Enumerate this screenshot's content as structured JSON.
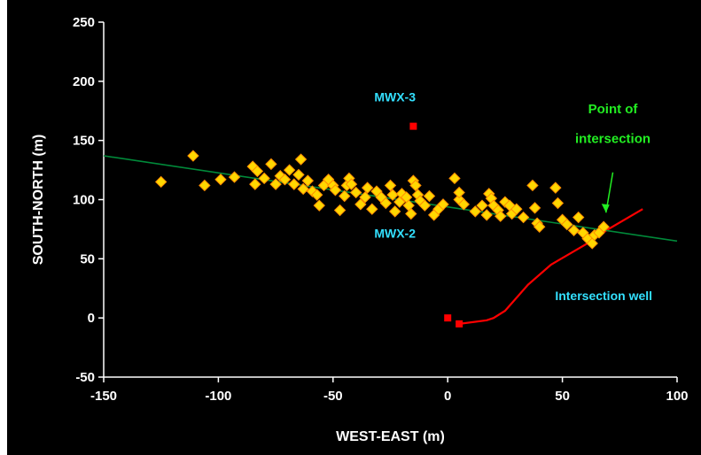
{
  "chart_data": {
    "type": "scatter",
    "xlabel": "WEST-EAST (m)",
    "ylabel": "SOUTH-NORTH (m)",
    "xlim": [
      -150,
      100
    ],
    "ylim": [
      -50,
      250
    ],
    "x_ticks": [
      "-150",
      "-100",
      "-50",
      "0",
      "50",
      "100"
    ],
    "y_ticks": [
      "-50",
      "0",
      "50",
      "100",
      "150",
      "200",
      "250"
    ],
    "grid": false,
    "background": "#000000",
    "series": [
      {
        "marker": "diamond",
        "color": "#ffd700",
        "points": [
          [
            -125,
            115
          ],
          [
            -111,
            137
          ],
          [
            -106,
            112
          ],
          [
            -99,
            117
          ],
          [
            -93,
            119
          ],
          [
            -85,
            128
          ],
          [
            -83,
            124
          ],
          [
            -84,
            113
          ],
          [
            -80,
            118
          ],
          [
            -77,
            130
          ],
          [
            -75,
            113
          ],
          [
            -73,
            120
          ],
          [
            -71,
            117
          ],
          [
            -69,
            125
          ],
          [
            -67,
            113
          ],
          [
            -65,
            121
          ],
          [
            -64,
            134
          ],
          [
            -63,
            109
          ],
          [
            -61,
            116
          ],
          [
            -59,
            107
          ],
          [
            -57,
            104
          ],
          [
            -56,
            95
          ],
          [
            -54,
            112
          ],
          [
            -52,
            117
          ],
          [
            -50,
            112
          ],
          [
            -49,
            108
          ],
          [
            -47,
            91
          ],
          [
            -45,
            103
          ],
          [
            -44,
            112
          ],
          [
            -43,
            118
          ],
          [
            -42,
            113
          ],
          [
            -40,
            106
          ],
          [
            -38,
            96
          ],
          [
            -36,
            102
          ],
          [
            -35,
            110
          ],
          [
            -33,
            92
          ],
          [
            -31,
            107
          ],
          [
            -29,
            102
          ],
          [
            -27,
            97
          ],
          [
            -25,
            112
          ],
          [
            -24,
            104
          ],
          [
            -23,
            90
          ],
          [
            -21,
            98
          ],
          [
            -20,
            105
          ],
          [
            -18,
            102
          ],
          [
            -17,
            95
          ],
          [
            -16,
            88
          ],
          [
            -15,
            116
          ],
          [
            -14,
            112
          ],
          [
            -13,
            104
          ],
          [
            -12,
            99
          ],
          [
            -10,
            95
          ],
          [
            -8,
            103
          ],
          [
            -6,
            87
          ],
          [
            -4,
            92
          ],
          [
            -2,
            96
          ],
          [
            3,
            118
          ],
          [
            5,
            100
          ],
          [
            5,
            106
          ],
          [
            7,
            96
          ],
          [
            12,
            90
          ],
          [
            15,
            95
          ],
          [
            17,
            87
          ],
          [
            18,
            105
          ],
          [
            19,
            101
          ],
          [
            20,
            95
          ],
          [
            22,
            91
          ],
          [
            23,
            86
          ],
          [
            25,
            98
          ],
          [
            27,
            95
          ],
          [
            28,
            88
          ],
          [
            30,
            92
          ],
          [
            33,
            85
          ],
          [
            37,
            112
          ],
          [
            38,
            93
          ],
          [
            39,
            80
          ],
          [
            40,
            77
          ],
          [
            47,
            110
          ],
          [
            48,
            97
          ],
          [
            50,
            83
          ],
          [
            52,
            79
          ],
          [
            55,
            74
          ],
          [
            57,
            85
          ],
          [
            59,
            72
          ],
          [
            61,
            67
          ],
          [
            63,
            63
          ],
          [
            64,
            70
          ],
          [
            66,
            72
          ],
          [
            68,
            77
          ]
        ]
      },
      {
        "name": "MWX-3",
        "marker": "square",
        "color": "#ff0000",
        "points": [
          [
            -15,
            162
          ]
        ]
      },
      {
        "name": "Intersection well",
        "type": "line",
        "color": "#ff0000",
        "points": [
          [
            5,
            -5
          ],
          [
            17,
            -2
          ],
          [
            20,
            0
          ],
          [
            25,
            6
          ],
          [
            35,
            28
          ],
          [
            45,
            45
          ],
          [
            60,
            62
          ],
          [
            70,
            75
          ],
          [
            85,
            92
          ]
        ]
      },
      {
        "marker": "square",
        "color": "#ff0000",
        "points": [
          [
            0,
            0
          ],
          [
            5,
            -5
          ]
        ]
      },
      {
        "type": "line",
        "color": "#008a3a",
        "points": [
          [
            -150,
            137
          ],
          [
            100,
            65
          ]
        ]
      }
    ],
    "annotations": [
      {
        "text": "MWX-3",
        "x": -23,
        "y": 183,
        "color": "#33e0ff"
      },
      {
        "text": "MWX-2",
        "x": -23,
        "y": 68,
        "color": "#33e0ff"
      },
      {
        "text": "Intersection well",
        "x": 68,
        "y": 15,
        "color": "#33e0ff"
      },
      {
        "text": "Point of",
        "x": 72,
        "y": 173,
        "color": "#22ee22"
      },
      {
        "text": "intersection",
        "x": 72,
        "y": 148,
        "color": "#22ee22"
      }
    ],
    "arrow": {
      "from": [
        72,
        123
      ],
      "to": [
        69,
        89
      ],
      "color": "#22ee22"
    }
  }
}
